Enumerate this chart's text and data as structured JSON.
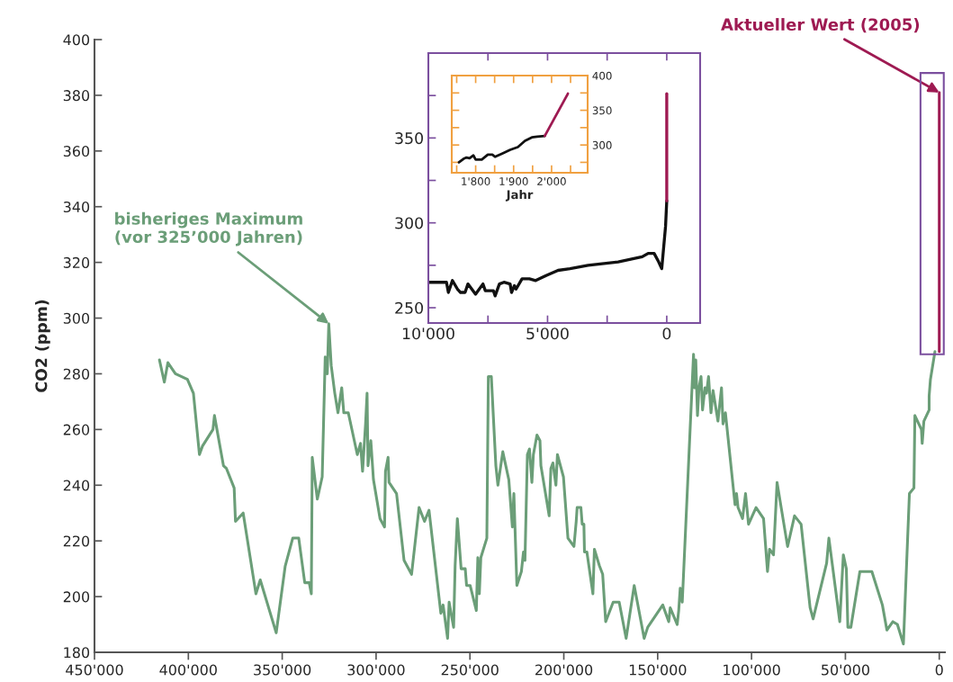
{
  "chart_data": [
    {
      "type": "line",
      "ylabel": "CO2 (ppm)",
      "xlim": [
        450000,
        -3000
      ],
      "ylim": [
        180,
        400
      ],
      "xticks": [
        {
          "value": 450000,
          "label": "450'000"
        },
        {
          "value": 400000,
          "label": "400'000"
        },
        {
          "value": 350000,
          "label": "350'000"
        },
        {
          "value": 300000,
          "label": "300'000"
        },
        {
          "value": 250000,
          "label": "250'000"
        },
        {
          "value": 200000,
          "label": "200'000"
        },
        {
          "value": 150000,
          "label": "150'000"
        },
        {
          "value": 100000,
          "label": "100'000"
        },
        {
          "value": 50000,
          "label": "50'000"
        },
        0
      ],
      "yticks": [
        180,
        200,
        220,
        240,
        260,
        280,
        300,
        320,
        340,
        360,
        380,
        400
      ],
      "series": [
        {
          "color": "#6b9e78",
          "x": [
            415400,
            412800,
            410900,
            406900,
            400500,
            397300,
            394100,
            392500,
            386900,
            386100,
            381300,
            379700,
            375600,
            374900,
            370800,
            364000,
            361700,
            353200,
            348400,
            344400,
            341200,
            338000,
            335600,
            334500,
            334000,
            331300,
            328700,
            327100,
            326000,
            325200,
            323900,
            322000,
            320300,
            318300,
            317200,
            314800,
            310000,
            308300,
            307200,
            305600,
            304800,
            304300,
            302800,
            301400,
            297900,
            295500,
            295000,
            293600,
            293100,
            289100,
            285100,
            281100,
            277100,
            274200,
            271800,
            265500,
            264300,
            261900,
            261100,
            258700,
            257900,
            256700,
            254700,
            252500,
            251800,
            249900,
            246600,
            245800,
            245000,
            244200,
            241000,
            240200,
            238600,
            236200,
            235100,
            232500,
            229300,
            227400,
            226600,
            225000,
            222600,
            221500,
            220700,
            219400,
            218300,
            217000,
            216200,
            214300,
            212700,
            212200,
            207800,
            206900,
            205800,
            204200,
            203400,
            200200,
            197800,
            194600,
            193400,
            192900,
            190900,
            190200,
            189300,
            189000,
            187700,
            184500,
            183700,
            181000,
            179300,
            177700,
            173700,
            170500,
            166800,
            162500,
            157200,
            155300,
            147300,
            144100,
            143300,
            139600,
            138800,
            138000,
            136900,
            130900,
            130400,
            129700,
            128800,
            128000,
            126900,
            126100,
            124800,
            124000,
            122900,
            121600,
            120500,
            117900,
            116000,
            115200,
            113900,
            108800,
            108000,
            107200,
            104800,
            103200,
            101600,
            97600,
            93600,
            91500,
            90400,
            88300,
            86400,
            80800,
            77100,
            73600,
            68800,
            67200,
            60000,
            58800,
            53000,
            51100,
            49500,
            48700,
            47100,
            42300,
            35900,
            30300,
            27900,
            24700,
            22300,
            19100,
            15900,
            13500,
            13000,
            9500,
            9100,
            8200,
            5400,
            5400,
            4700,
            2300
          ],
          "values": [
            285,
            277,
            284,
            280,
            278,
            273,
            251,
            254,
            260,
            265,
            247,
            246,
            239,
            227,
            230,
            201,
            206,
            187,
            211,
            221,
            221,
            205,
            205,
            201,
            250,
            235,
            243,
            286,
            280,
            298,
            283,
            273,
            266,
            275,
            266,
            266,
            251,
            255,
            245,
            262,
            273,
            247,
            256,
            242,
            228,
            225,
            245,
            250,
            241,
            237,
            213,
            208,
            232,
            227,
            231,
            194,
            197,
            185,
            198,
            189,
            211,
            228,
            210,
            210,
            204,
            204,
            195,
            214,
            201,
            214,
            221,
            279,
            279,
            247,
            240,
            252,
            242,
            225,
            237,
            204,
            209,
            216,
            213,
            251,
            253,
            241,
            251,
            258,
            256,
            247,
            229,
            246,
            248,
            240,
            251,
            243,
            221,
            218,
            227,
            232,
            232,
            226,
            226,
            216,
            216,
            201,
            217,
            211,
            208,
            191,
            198,
            198,
            185,
            204,
            185,
            189,
            197,
            191,
            196,
            190,
            195,
            203,
            198,
            287,
            275,
            285,
            265,
            275,
            279,
            267,
            275,
            273,
            279,
            266,
            274,
            263,
            275,
            262,
            266,
            233,
            237,
            232,
            228,
            237,
            226,
            232,
            228,
            209,
            217,
            215,
            241,
            218,
            229,
            226,
            196,
            192,
            212,
            221,
            191,
            215,
            210,
            189,
            189,
            209,
            209,
            197,
            188,
            191,
            190,
            183,
            237,
            239,
            265,
            260,
            255,
            263,
            267,
            272,
            278,
            288
          ]
        },
        {
          "color": "#9e1a52",
          "x": [
            0,
            0
          ],
          "values": [
            288,
            381
          ]
        }
      ],
      "annotations": [
        {
          "text": "bisheriges Maximum\n(vor 325’000 Jahren)",
          "x": 325200,
          "y": 298
        },
        {
          "text": "Aktueller Wert (2005)",
          "x": 0,
          "y": 381
        }
      ]
    },
    {
      "type": "line",
      "xlim": [
        10000,
        -1400
      ],
      "ylim": [
        241,
        400
      ],
      "xticks": [
        {
          "value": 10000,
          "label": "10'000"
        },
        {
          "value": 7500,
          "label": null
        },
        {
          "value": 5000,
          "label": "5'000"
        },
        {
          "value": 2500,
          "label": null
        },
        0
      ],
      "yticks": [
        250,
        {
          "value": 275,
          "label": null
        },
        300,
        {
          "value": 325,
          "label": null
        },
        350,
        {
          "value": 375,
          "label": null
        }
      ],
      "series": [
        {
          "color": "#111111",
          "x": [
            10000,
            9240,
            9160,
            8990,
            8780,
            8650,
            8460,
            8340,
            8020,
            7710,
            7610,
            7270,
            7200,
            7020,
            6830,
            6570,
            6510,
            6390,
            6320,
            6070,
            5760,
            5500,
            5060,
            4560,
            4060,
            3300,
            2040,
            1030,
            780,
            530,
            340,
            210,
            50,
            0
          ],
          "values": [
            265,
            265,
            259,
            266,
            261,
            259,
            259,
            264,
            258,
            264,
            260,
            260,
            257,
            264,
            265,
            264,
            259,
            263,
            261,
            267,
            267,
            266,
            269,
            272,
            273,
            275,
            277,
            280,
            282,
            282,
            277,
            273,
            298,
            313
          ]
        },
        {
          "color": "#9e1a52",
          "x": [
            0,
            0
          ],
          "values": [
            313,
            376
          ]
        }
      ]
    },
    {
      "type": "line",
      "xlabel": "Jahr",
      "xlim": [
        1737,
        2095
      ],
      "ylim": [
        260,
        400
      ],
      "xticks": [
        {
          "value": 1750,
          "label": null
        },
        {
          "value": 1800,
          "label": "1'800"
        },
        {
          "value": 1850,
          "label": null
        },
        {
          "value": 1900,
          "label": "1'900"
        },
        {
          "value": 1950,
          "label": null
        },
        {
          "value": 2000,
          "label": "2'000"
        },
        {
          "value": 2050,
          "label": null
        }
      ],
      "yticks": [
        {
          "value": 275,
          "label": null
        },
        300,
        {
          "value": 325,
          "label": null
        },
        350,
        {
          "value": 375,
          "label": null
        },
        400
      ],
      "series": [
        {
          "color": "#111111",
          "x": [
            1756,
            1768,
            1776,
            1784,
            1794,
            1800,
            1816,
            1832,
            1844,
            1851,
            1871,
            1891,
            1911,
            1930,
            1948,
            1962,
            1982
          ],
          "values": [
            275,
            280,
            282,
            281,
            285,
            279,
            279,
            286,
            286,
            283,
            288,
            293,
            297,
            306,
            311,
            312,
            313
          ]
        },
        {
          "color": "#9e1a52",
          "x": [
            1982,
            2043
          ],
          "values": [
            313,
            374
          ]
        }
      ]
    }
  ]
}
